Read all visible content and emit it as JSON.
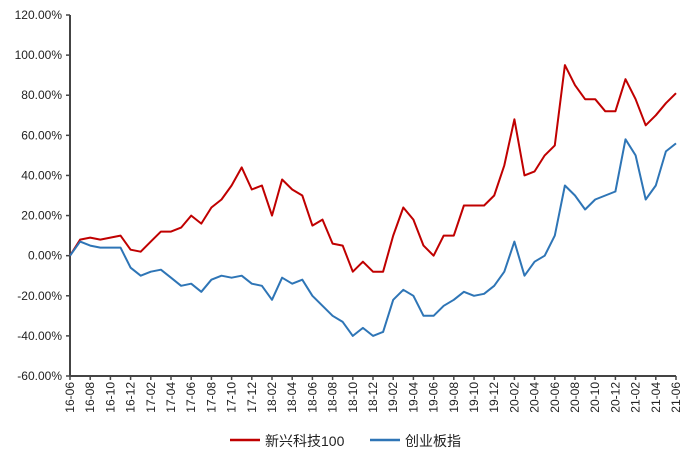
{
  "chart_data": {
    "type": "line",
    "title": "",
    "xlabel": "",
    "ylabel": "",
    "ylim": [
      -60,
      120
    ],
    "y_ticks": [
      "120.00%",
      "100.00%",
      "80.00%",
      "60.00%",
      "40.00%",
      "20.00%",
      "0.00%",
      "-20.00%",
      "-40.00%",
      "-60.00%"
    ],
    "x_ticks": [
      "16-06",
      "16-08",
      "16-10",
      "16-12",
      "17-02",
      "17-04",
      "17-06",
      "17-08",
      "17-10",
      "17-12",
      "18-02",
      "18-04",
      "18-06",
      "18-08",
      "18-10",
      "18-12",
      "19-02",
      "19-04",
      "19-06",
      "19-08",
      "19-10",
      "19-12",
      "20-02",
      "20-04",
      "20-06",
      "20-08",
      "20-10",
      "20-12",
      "21-02",
      "21-04",
      "21-06"
    ],
    "grid": false,
    "legend_position": "bottom",
    "x": [
      "16-06",
      "16-07",
      "16-08",
      "16-09",
      "16-10",
      "16-11",
      "16-12",
      "17-01",
      "17-02",
      "17-03",
      "17-04",
      "17-05",
      "17-06",
      "17-07",
      "17-08",
      "17-09",
      "17-10",
      "17-11",
      "17-12",
      "18-01",
      "18-02",
      "18-03",
      "18-04",
      "18-05",
      "18-06",
      "18-07",
      "18-08",
      "18-09",
      "18-10",
      "18-11",
      "18-12",
      "19-01",
      "19-02",
      "19-03",
      "19-04",
      "19-05",
      "19-06",
      "19-07",
      "19-08",
      "19-09",
      "19-10",
      "19-11",
      "19-12",
      "20-01",
      "20-02",
      "20-03",
      "20-04",
      "20-05",
      "20-06",
      "20-07",
      "20-08",
      "20-09",
      "20-10",
      "20-11",
      "20-12",
      "21-01",
      "21-02",
      "21-03",
      "21-04",
      "21-05",
      "21-06"
    ],
    "series": [
      {
        "name": "新兴科技100",
        "color": "#C00000",
        "values": [
          0,
          8,
          9,
          8,
          9,
          10,
          3,
          2,
          7,
          12,
          12,
          14,
          20,
          16,
          24,
          28,
          35,
          44,
          33,
          35,
          20,
          38,
          33,
          30,
          15,
          18,
          6,
          5,
          -8,
          -3,
          -8,
          -8,
          10,
          24,
          18,
          5,
          0,
          10,
          10,
          25,
          25,
          25,
          30,
          45,
          68,
          40,
          42,
          50,
          55,
          95,
          85,
          78,
          78,
          72,
          72,
          88,
          78,
          65,
          70,
          76,
          81
        ]
      },
      {
        "name": "创业板指",
        "color": "#2E75B6",
        "values": [
          0,
          7,
          5,
          4,
          4,
          4,
          -6,
          -10,
          -8,
          -7,
          -11,
          -15,
          -14,
          -18,
          -12,
          -10,
          -11,
          -10,
          -14,
          -15,
          -22,
          -11,
          -14,
          -12,
          -20,
          -25,
          -30,
          -33,
          -40,
          -36,
          -40,
          -38,
          -22,
          -17,
          -20,
          -30,
          -30,
          -25,
          -22,
          -18,
          -20,
          -19,
          -15,
          -8,
          7,
          -10,
          -3,
          0,
          10,
          35,
          30,
          23,
          28,
          30,
          32,
          58,
          50,
          28,
          35,
          52,
          56
        ]
      }
    ]
  }
}
